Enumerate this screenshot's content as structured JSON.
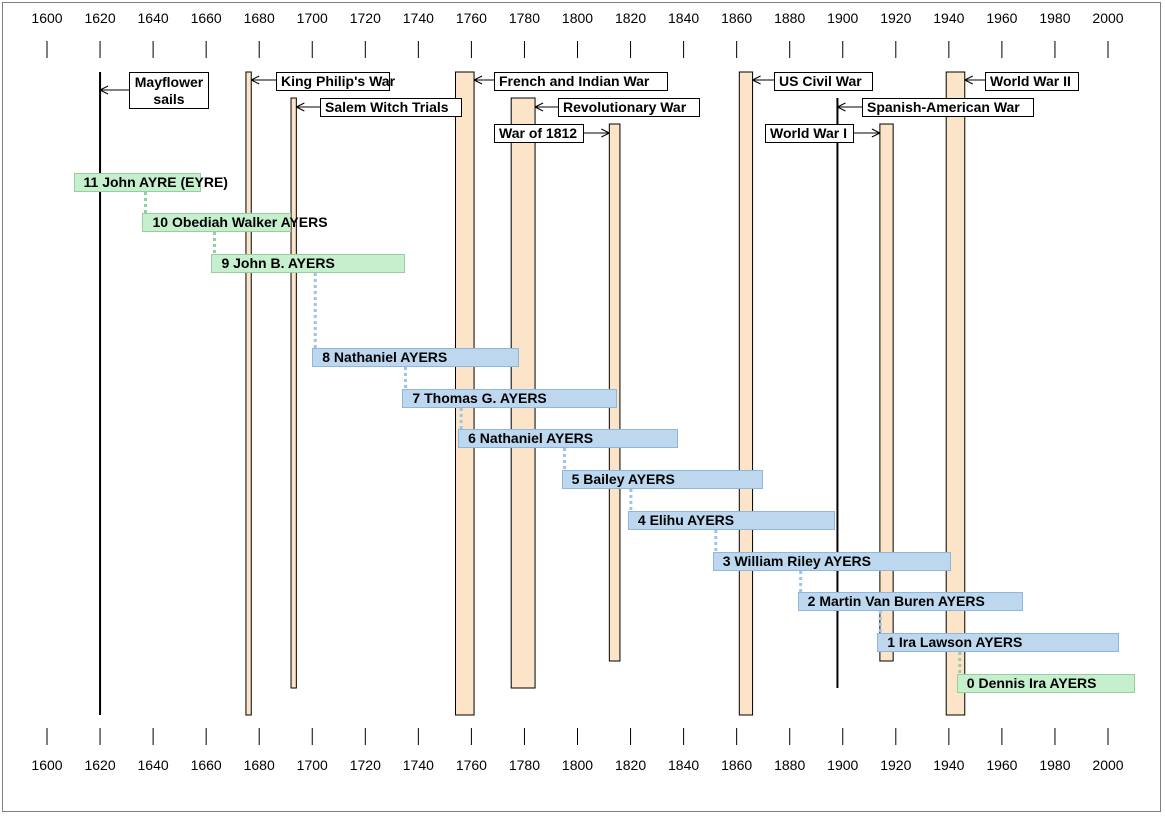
{
  "chart_data": {
    "type": "timeline",
    "title": "",
    "axis": {
      "min": 1600,
      "max": 2000,
      "step": 20,
      "ticks": [
        "1600",
        "1620",
        "1640",
        "1660",
        "1680",
        "1700",
        "1720",
        "1740",
        "1760",
        "1780",
        "1800",
        "1820",
        "1840",
        "1860",
        "1880",
        "1900",
        "1920",
        "1940",
        "1960",
        "1980",
        "2000"
      ]
    },
    "events": [
      {
        "name": "Mayflower sails",
        "lines": [
          "Mayflower",
          "sails"
        ],
        "start": 1620,
        "end": 1620
      },
      {
        "name": "King Philip's War",
        "start": 1675,
        "end": 1676
      },
      {
        "name": "Salem Witch Trials",
        "start": 1692,
        "end": 1693
      },
      {
        "name": "French and Indian War",
        "start": 1754,
        "end": 1760
      },
      {
        "name": "Revolutionary War",
        "start": 1775,
        "end": 1783
      },
      {
        "name": "War of 1812",
        "start": 1812,
        "end": 1815
      },
      {
        "name": "US Civil War",
        "start": 1861,
        "end": 1865
      },
      {
        "name": "Spanish-American War",
        "start": 1898,
        "end": 1898
      },
      {
        "name": "World War I",
        "start": 1914,
        "end": 1918
      },
      {
        "name": "World War II",
        "start": 1939,
        "end": 1945
      }
    ],
    "people": [
      {
        "label": "11 John AYRE (EYRE)",
        "start": 1610,
        "end": 1658,
        "color": "green"
      },
      {
        "label": "10 Obediah Walker AYERS",
        "start": 1636,
        "end": 1692,
        "color": "green"
      },
      {
        "label": "9 John B. AYERS",
        "start": 1662,
        "end": 1735,
        "color": "green"
      },
      {
        "label": "8 Nathaniel AYERS",
        "start": 1700,
        "end": 1778,
        "color": "blue"
      },
      {
        "label": "7 Thomas G. AYERS",
        "start": 1734,
        "end": 1815,
        "color": "blue"
      },
      {
        "label": "6 Nathaniel AYERS",
        "start": 1755,
        "end": 1838,
        "color": "blue"
      },
      {
        "label": "5 Bailey AYERS",
        "start": 1794,
        "end": 1870,
        "color": "blue"
      },
      {
        "label": "4 Elihu AYERS",
        "start": 1819,
        "end": 1897,
        "color": "blue"
      },
      {
        "label": "3 William Riley AYERS",
        "start": 1851,
        "end": 1941,
        "color": "blue"
      },
      {
        "label": "2 Martin Van Buren AYERS",
        "start": 1883,
        "end": 1968,
        "color": "blue"
      },
      {
        "label": "1 Ira Lawson AYERS",
        "start": 1913,
        "end": 2004,
        "color": "blue"
      },
      {
        "label": "0 Dennis Ira AYERS",
        "start": 1943,
        "end": 2010,
        "color": "green"
      }
    ]
  }
}
